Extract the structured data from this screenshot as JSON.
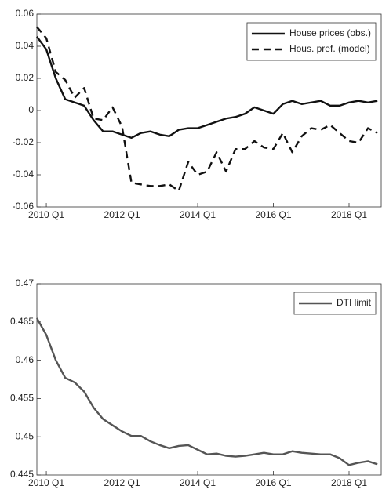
{
  "chart_data": [
    {
      "type": "line",
      "x": [
        2009.75,
        2010,
        2010.25,
        2010.5,
        2010.75,
        2011,
        2011.25,
        2011.5,
        2011.75,
        2012,
        2012.25,
        2012.5,
        2012.75,
        2013,
        2013.25,
        2013.5,
        2013.75,
        2014,
        2014.25,
        2014.5,
        2014.75,
        2015,
        2015.25,
        2015.5,
        2015.75,
        2016,
        2016.25,
        2016.5,
        2016.75,
        2017,
        2017.25,
        2017.5,
        2017.75,
        2018,
        2018.25,
        2018.5,
        2018.75
      ],
      "series": [
        {
          "name": "House prices (obs.)",
          "color": "#111111",
          "dash": "solid",
          "values": [
            0.046,
            0.038,
            0.02,
            0.007,
            0.005,
            0.003,
            -0.006,
            -0.013,
            -0.013,
            -0.015,
            -0.017,
            -0.014,
            -0.013,
            -0.015,
            -0.016,
            -0.012,
            -0.011,
            -0.011,
            -0.009,
            -0.007,
            -0.005,
            -0.004,
            -0.002,
            0.002,
            0.0,
            -0.002,
            0.004,
            0.006,
            0.004,
            0.005,
            0.006,
            0.003,
            0.003,
            0.005,
            0.006,
            0.005,
            0.006
          ]
        },
        {
          "name": "Hous. pref. (model)",
          "color": "#111111",
          "dash": "dashed",
          "values": [
            0.052,
            0.045,
            0.024,
            0.019,
            0.008,
            0.014,
            -0.005,
            -0.006,
            0.002,
            -0.01,
            -0.045,
            -0.046,
            -0.047,
            -0.047,
            -0.046,
            -0.05,
            -0.032,
            -0.04,
            -0.038,
            -0.026,
            -0.038,
            -0.024,
            -0.024,
            -0.019,
            -0.023,
            -0.024,
            -0.014,
            -0.026,
            -0.016,
            -0.011,
            -0.012,
            -0.009,
            -0.014,
            -0.019,
            -0.02,
            -0.011,
            -0.014
          ]
        }
      ],
      "xlim": [
        2009.75,
        2018.85
      ],
      "xticks": [
        {
          "value": 2010,
          "label": "2010 Q1"
        },
        {
          "value": 2012,
          "label": "2012 Q1"
        },
        {
          "value": 2014,
          "label": "2014 Q1"
        },
        {
          "value": 2016,
          "label": "2016 Q1"
        },
        {
          "value": 2018,
          "label": "2018 Q1"
        }
      ],
      "ylim": [
        -0.06,
        0.06
      ],
      "yticks": [
        -0.06,
        -0.04,
        -0.02,
        0,
        0.02,
        0.04,
        0.06
      ],
      "legend": "upper right"
    },
    {
      "type": "line",
      "x": [
        2009.75,
        2010,
        2010.25,
        2010.5,
        2010.75,
        2011,
        2011.25,
        2011.5,
        2011.75,
        2012,
        2012.25,
        2012.5,
        2012.75,
        2013,
        2013.25,
        2013.5,
        2013.75,
        2014,
        2014.25,
        2014.5,
        2014.75,
        2015,
        2015.25,
        2015.5,
        2015.75,
        2016,
        2016.25,
        2016.5,
        2016.75,
        2017,
        2017.25,
        2017.5,
        2017.75,
        2018,
        2018.25,
        2018.5,
        2018.75
      ],
      "series": [
        {
          "name": "DTI limit",
          "color": "#555555",
          "dash": "solid",
          "values": [
            0.4655,
            0.4633,
            0.46,
            0.4577,
            0.4571,
            0.4559,
            0.4538,
            0.4523,
            0.4515,
            0.4507,
            0.4501,
            0.4501,
            0.4494,
            0.4489,
            0.4485,
            0.4488,
            0.4489,
            0.4483,
            0.4477,
            0.4478,
            0.4475,
            0.4474,
            0.4475,
            0.4477,
            0.4479,
            0.4477,
            0.4477,
            0.4481,
            0.4479,
            0.4478,
            0.4477,
            0.4477,
            0.4472,
            0.4463,
            0.4466,
            0.4468,
            0.4464
          ]
        }
      ],
      "xlim": [
        2009.75,
        2018.85
      ],
      "xticks": [
        {
          "value": 2010,
          "label": "2010 Q1"
        },
        {
          "value": 2012,
          "label": "2012 Q1"
        },
        {
          "value": 2014,
          "label": "2014 Q1"
        },
        {
          "value": 2016,
          "label": "2016 Q1"
        },
        {
          "value": 2018,
          "label": "2018 Q1"
        }
      ],
      "ylim": [
        0.445,
        0.47
      ],
      "yticks": [
        0.445,
        0.45,
        0.455,
        0.46,
        0.465,
        0.47
      ],
      "legend": "upper right"
    }
  ]
}
